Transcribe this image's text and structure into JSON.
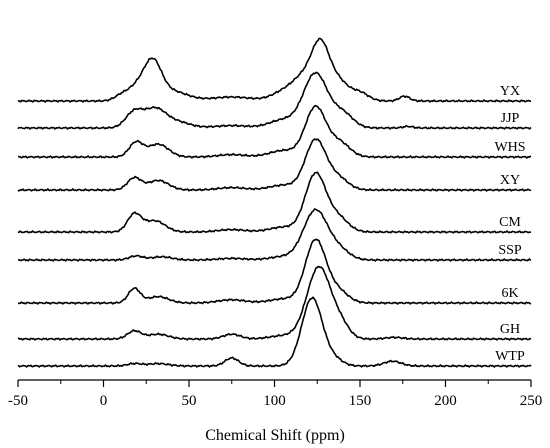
{
  "chart_data": {
    "type": "line",
    "xlabel": "Chemical Shift (ppm)",
    "ylabel": "",
    "title": "",
    "xlim": [
      -50,
      250
    ],
    "xticks": [
      -50,
      0,
      50,
      100,
      150,
      200,
      250
    ],
    "grid": false,
    "legend": "inline-right",
    "line_color": "#000000",
    "series": [
      {
        "name": "YX",
        "peaks": [
          {
            "center": 10,
            "height": 0.05,
            "width": 4
          },
          {
            "center": 20,
            "height": 0.18,
            "width": 6
          },
          {
            "center": 29,
            "height": 0.42,
            "width": 5
          },
          {
            "center": 40,
            "height": 0.12,
            "width": 9
          },
          {
            "center": 75,
            "height": 0.05,
            "width": 12
          },
          {
            "center": 105,
            "height": 0.1,
            "width": 7
          },
          {
            "center": 118,
            "height": 0.3,
            "width": 7
          },
          {
            "center": 127,
            "height": 0.58,
            "width": 5
          },
          {
            "center": 137,
            "height": 0.25,
            "width": 6
          },
          {
            "center": 150,
            "height": 0.1,
            "width": 5
          },
          {
            "center": 176,
            "height": 0.06,
            "width": 3
          }
        ]
      },
      {
        "name": "JJP",
        "peaks": [
          {
            "center": 18,
            "height": 0.2,
            "width": 5
          },
          {
            "center": 30,
            "height": 0.22,
            "width": 6
          },
          {
            "center": 42,
            "height": 0.08,
            "width": 8
          },
          {
            "center": 75,
            "height": 0.03,
            "width": 10
          },
          {
            "center": 105,
            "height": 0.1,
            "width": 8
          },
          {
            "center": 124,
            "height": 0.68,
            "width": 7
          },
          {
            "center": 140,
            "height": 0.18,
            "width": 6
          },
          {
            "center": 178,
            "height": 0.02,
            "width": 3
          }
        ]
      },
      {
        "name": "WHS",
        "peaks": [
          {
            "center": 19,
            "height": 0.18,
            "width": 4
          },
          {
            "center": 32,
            "height": 0.16,
            "width": 6
          },
          {
            "center": 75,
            "height": 0.03,
            "width": 8
          },
          {
            "center": 105,
            "height": 0.08,
            "width": 8
          },
          {
            "center": 124,
            "height": 0.62,
            "width": 6
          },
          {
            "center": 138,
            "height": 0.18,
            "width": 6
          }
        ]
      },
      {
        "name": "XY",
        "peaks": [
          {
            "center": 18,
            "height": 0.15,
            "width": 4
          },
          {
            "center": 32,
            "height": 0.12,
            "width": 6
          },
          {
            "center": 75,
            "height": 0.03,
            "width": 8
          },
          {
            "center": 105,
            "height": 0.06,
            "width": 8
          },
          {
            "center": 124,
            "height": 0.62,
            "width": 6
          },
          {
            "center": 137,
            "height": 0.15,
            "width": 6
          }
        ]
      },
      {
        "name": "CM",
        "peaks": [
          {
            "center": 18,
            "height": 0.22,
            "width": 4
          },
          {
            "center": 30,
            "height": 0.14,
            "width": 6
          },
          {
            "center": 75,
            "height": 0.03,
            "width": 8
          },
          {
            "center": 105,
            "height": 0.06,
            "width": 8
          },
          {
            "center": 124,
            "height": 0.72,
            "width": 6
          },
          {
            "center": 137,
            "height": 0.18,
            "width": 6
          }
        ]
      },
      {
        "name": "SSP",
        "peaks": [
          {
            "center": 19,
            "height": 0.05,
            "width": 4
          },
          {
            "center": 34,
            "height": 0.04,
            "width": 6
          },
          {
            "center": 75,
            "height": 0.02,
            "width": 8
          },
          {
            "center": 105,
            "height": 0.04,
            "width": 8
          },
          {
            "center": 124,
            "height": 0.62,
            "width": 7
          },
          {
            "center": 138,
            "height": 0.12,
            "width": 6
          }
        ]
      },
      {
        "name": "6K",
        "peaks": [
          {
            "center": 18,
            "height": 0.18,
            "width": 3.5
          },
          {
            "center": 32,
            "height": 0.08,
            "width": 6
          },
          {
            "center": 75,
            "height": 0.04,
            "width": 8
          },
          {
            "center": 105,
            "height": 0.05,
            "width": 8
          },
          {
            "center": 124,
            "height": 0.78,
            "width": 6
          },
          {
            "center": 137,
            "height": 0.15,
            "width": 6
          }
        ]
      },
      {
        "name": "GH",
        "peaks": [
          {
            "center": 18,
            "height": 0.1,
            "width": 4
          },
          {
            "center": 32,
            "height": 0.06,
            "width": 6
          },
          {
            "center": 75,
            "height": 0.06,
            "width": 5
          },
          {
            "center": 105,
            "height": 0.04,
            "width": 8
          },
          {
            "center": 126,
            "height": 0.9,
            "width": 7
          },
          {
            "center": 139,
            "height": 0.15,
            "width": 5
          },
          {
            "center": 170,
            "height": 0.02,
            "width": 5
          }
        ]
      },
      {
        "name": "WTP",
        "peaks": [
          {
            "center": 18,
            "height": 0.03,
            "width": 4
          },
          {
            "center": 32,
            "height": 0.03,
            "width": 6
          },
          {
            "center": 75,
            "height": 0.1,
            "width": 4
          },
          {
            "center": 122,
            "height": 0.85,
            "width": 6
          },
          {
            "center": 135,
            "height": 0.08,
            "width": 5
          },
          {
            "center": 169,
            "height": 0.06,
            "width": 5
          }
        ]
      }
    ]
  }
}
